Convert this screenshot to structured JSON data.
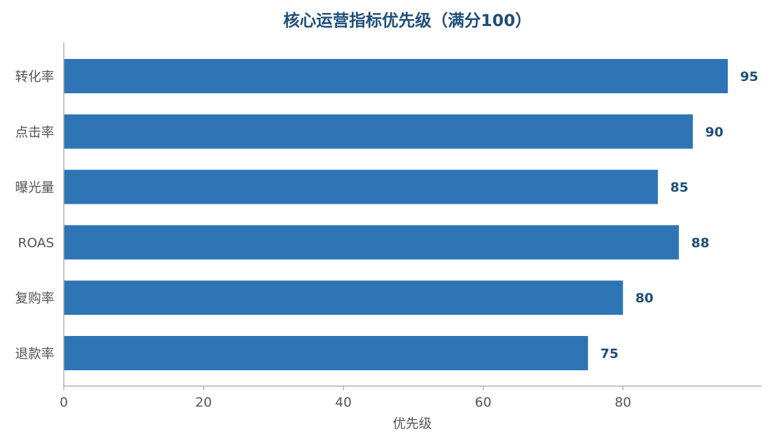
{
  "chart_data": {
    "type": "bar",
    "orientation": "horizontal",
    "title": "核心运营指标优先级（满分100）",
    "xlabel": "优先级",
    "ylabel": "",
    "categories": [
      "转化率",
      "点击率",
      "曝光量",
      "ROAS",
      "复购率",
      "退款率"
    ],
    "values": [
      95,
      90,
      85,
      88,
      80,
      75
    ],
    "xlim": [
      0,
      100
    ],
    "xticks": [
      0,
      20,
      40,
      60,
      80
    ],
    "grid": false,
    "legend": "none",
    "bar_color": "#2e75b6",
    "value_label_color": "#1f4e79",
    "title_color": "#1f4e79"
  }
}
